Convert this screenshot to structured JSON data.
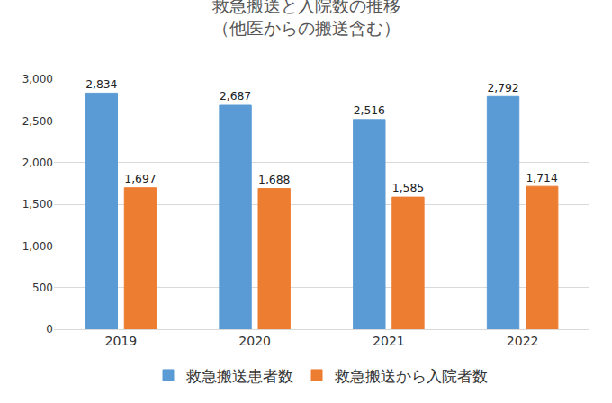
{
  "chart_data": {
    "type": "bar",
    "title": "救急搬送と入院数の推移",
    "subtitle": "（他医からの搬送含む）",
    "categories": [
      "2019",
      "2020",
      "2021",
      "2022"
    ],
    "series": [
      {
        "name": "救急搬送患者数",
        "color": "#5b9bd5",
        "values": [
          2834,
          2687,
          2516,
          2792
        ],
        "value_labels": [
          "2,834",
          "2,687",
          "2,516",
          "2,792"
        ]
      },
      {
        "name": "救急搬送から入院者数",
        "color": "#ed7d31",
        "values": [
          1697,
          1688,
          1585,
          1714
        ],
        "value_labels": [
          "1,697",
          "1,688",
          "1,585",
          "1,714"
        ]
      }
    ],
    "ylim": [
      0,
      3000
    ],
    "yticks": [
      0,
      500,
      {
        "value": 1000,
        "label": "1,000"
      },
      {
        "value": 1500,
        "label": "1,500"
      },
      {
        "value": 2000,
        "label": "2,000"
      },
      {
        "value": 2500,
        "label": "2,500"
      },
      {
        "value": 3000,
        "label": "3,000"
      }
    ],
    "grid": true,
    "legend": "bottom",
    "data_labels": true
  }
}
